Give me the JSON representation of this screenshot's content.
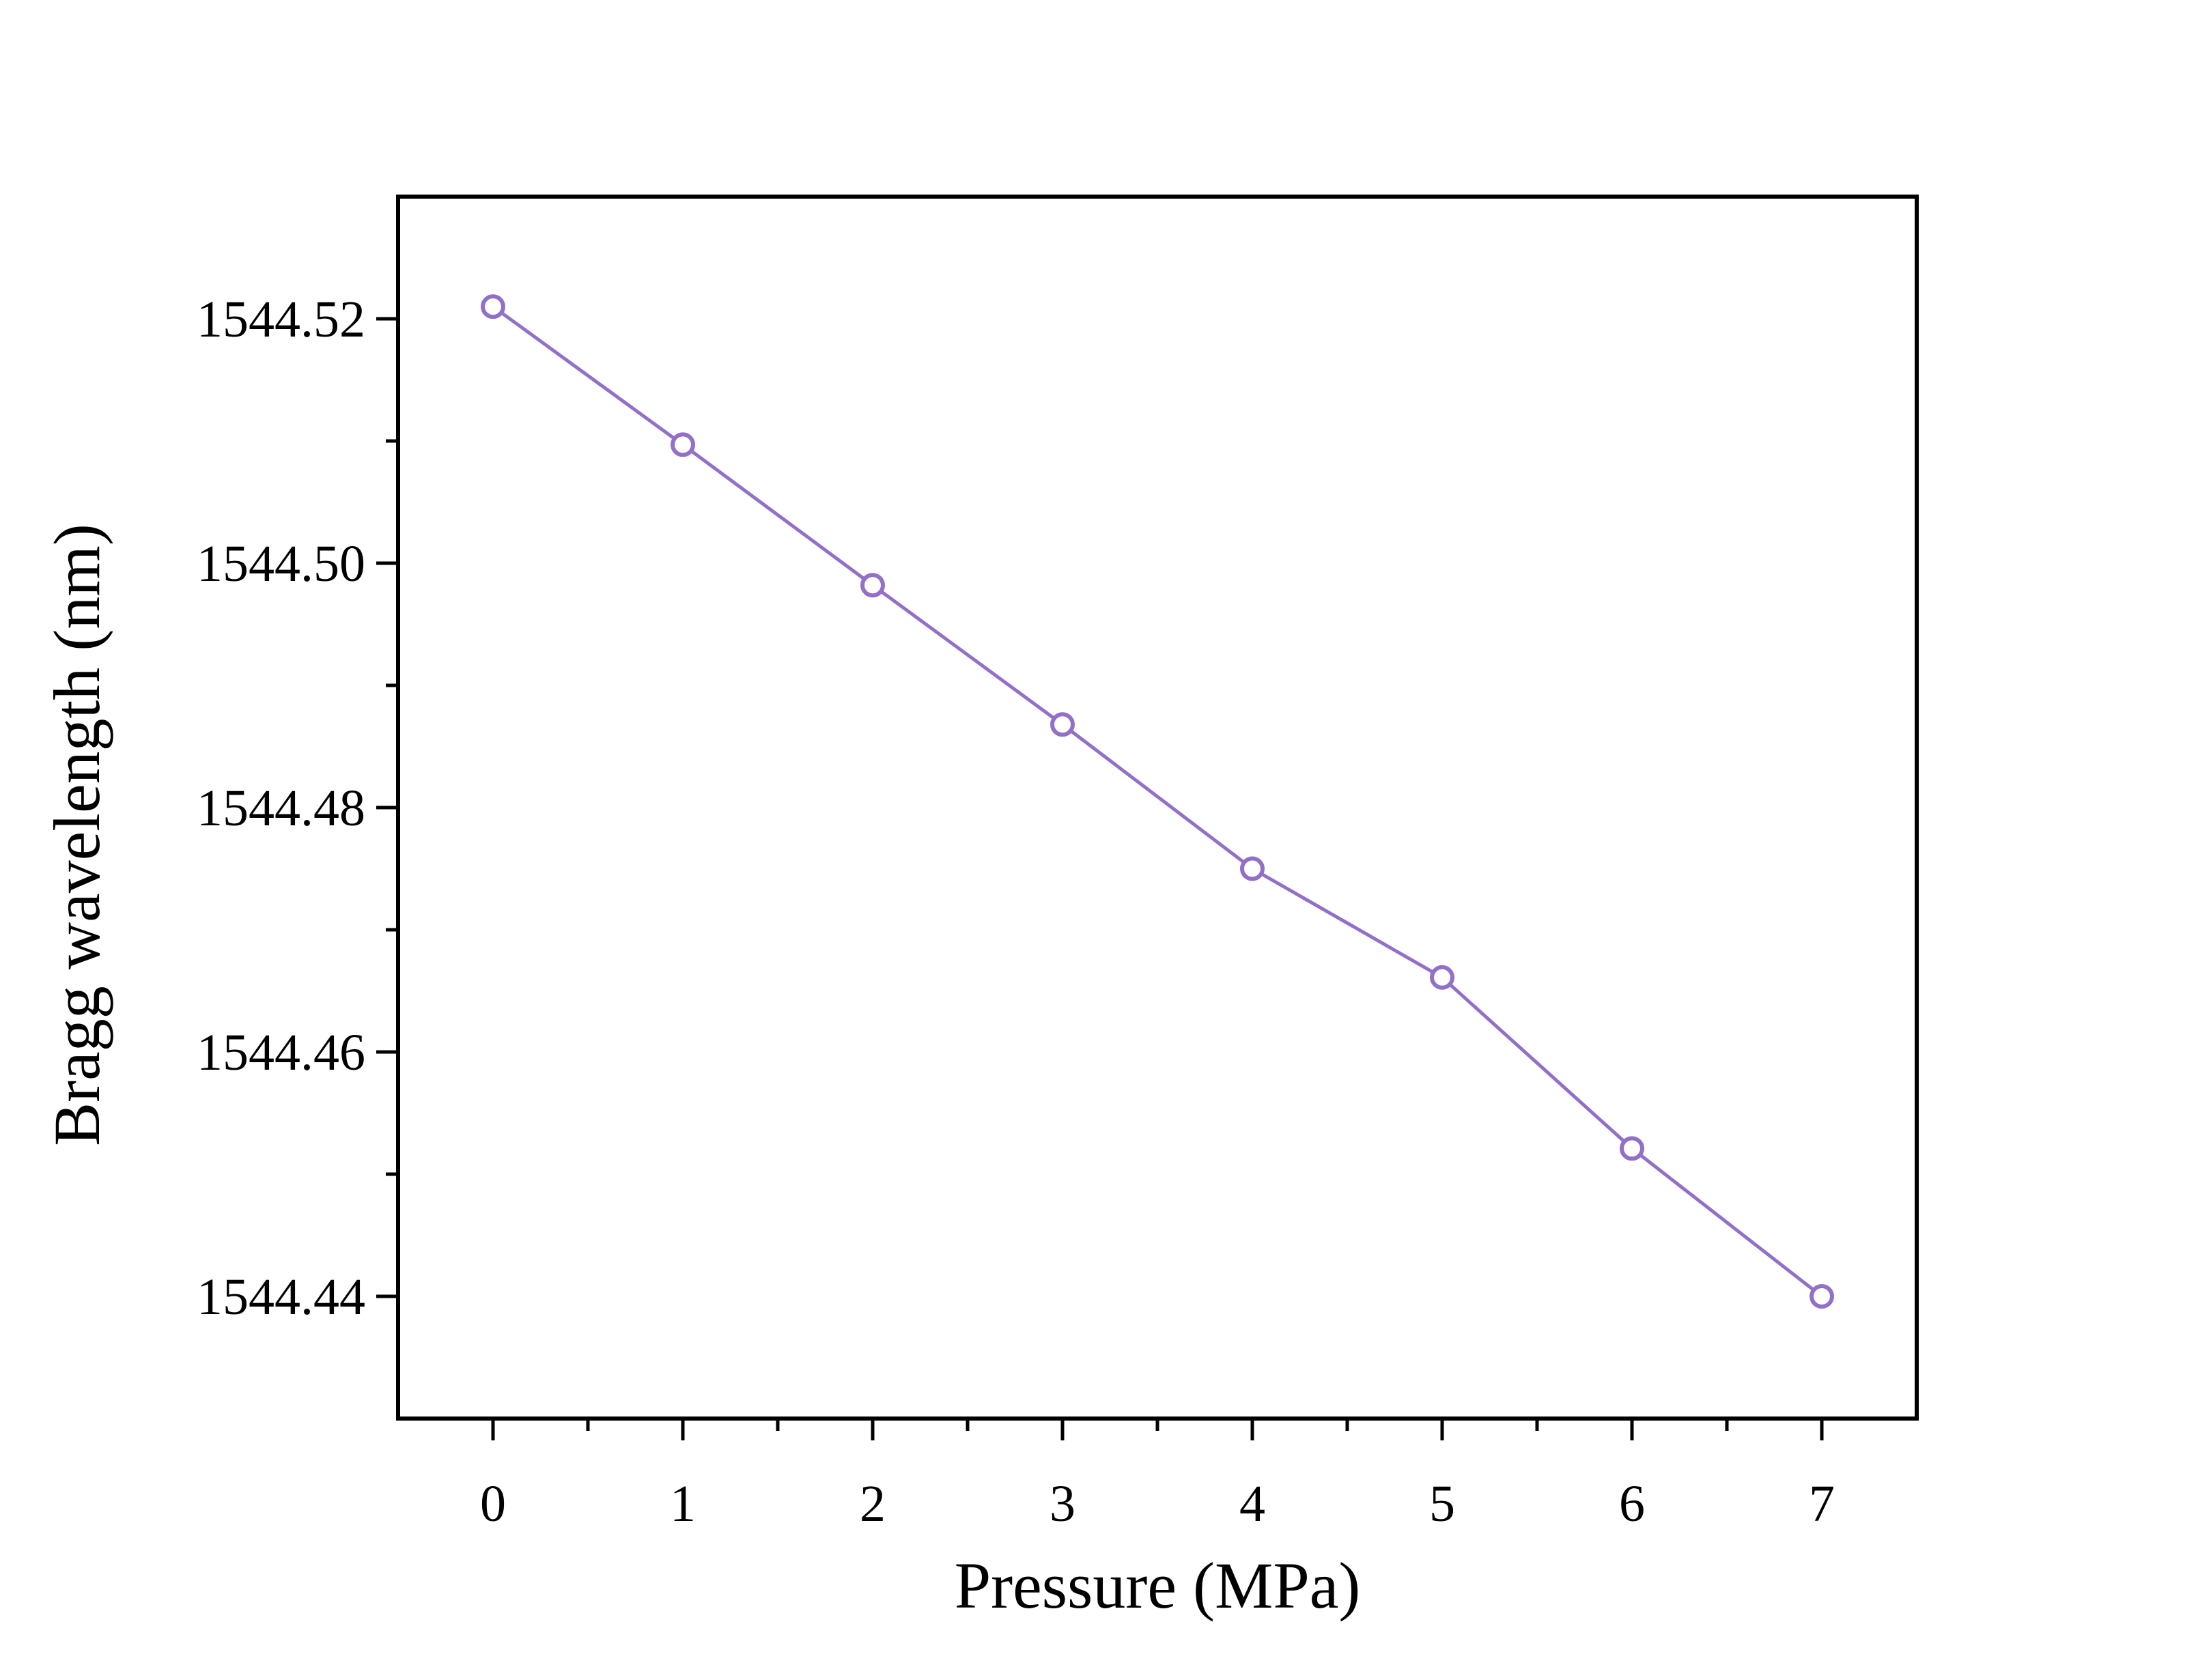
{
  "chart_data": {
    "type": "line",
    "title": "",
    "xlabel": "Pressure (MPa)",
    "ylabel": "Bragg wavelength (nm)",
    "x": [
      0,
      1,
      2,
      3,
      4,
      5,
      6,
      7
    ],
    "series": [
      {
        "name": "Bragg wavelength",
        "values": [
          1544.521,
          1544.5097,
          1544.4982,
          1544.4868,
          1544.475,
          1544.4661,
          1544.4521,
          1544.44
        ],
        "color": "#9370c8",
        "marker": "open-circle"
      }
    ],
    "xlim": [
      -0.5,
      7.5
    ],
    "ylim": [
      1544.43,
      1544.53
    ],
    "x_ticks": [
      0,
      1,
      2,
      3,
      4,
      5,
      6,
      7
    ],
    "x_tick_labels": [
      "0",
      "1",
      "2",
      "3",
      "4",
      "5",
      "6",
      "7"
    ],
    "y_ticks": [
      1544.44,
      1544.46,
      1544.48,
      1544.5,
      1544.52
    ],
    "y_tick_labels": [
      "1544.44",
      "1544.46",
      "1544.48",
      "1544.50",
      "1544.52"
    ],
    "x_minor_ticks": [
      0.5,
      1.5,
      2.5,
      3.5,
      4.5,
      5.5,
      6.5
    ],
    "y_minor_ticks": [
      1544.45,
      1544.47,
      1544.49,
      1544.51
    ],
    "grid": false,
    "legend": "none"
  }
}
